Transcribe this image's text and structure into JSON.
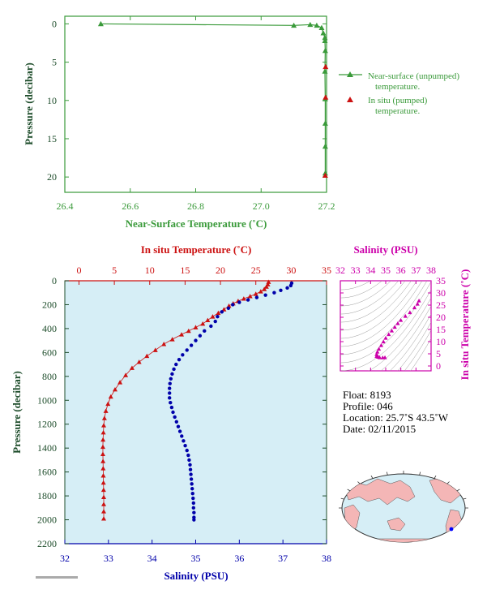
{
  "chart_data": [
    {
      "type": "line",
      "xlabel": "Near-Surface Temperature (˚C)",
      "ylabel": "Pressure (decibar)",
      "xlim": [
        26.4,
        27.2
      ],
      "ylim": [
        22,
        -1
      ],
      "xticks": [
        "26.4",
        "26.6",
        "26.8",
        "27.0",
        "27.2"
      ],
      "yticks": [
        "0",
        "5",
        "10",
        "15",
        "20"
      ],
      "legend_position": "right",
      "series": [
        {
          "name": "Near-surface (unpumped) temperature.",
          "color": "#3a9a3a",
          "marker": "triangle-line",
          "points": [
            [
              26.51,
              0.0
            ],
            [
              27.1,
              0.2
            ],
            [
              27.15,
              0.1
            ],
            [
              27.17,
              0.2
            ],
            [
              27.185,
              0.5
            ],
            [
              27.19,
              1.2
            ],
            [
              27.195,
              1.8
            ],
            [
              27.195,
              2.2
            ],
            [
              27.196,
              3.5
            ],
            [
              27.195,
              6.2
            ],
            [
              27.196,
              9.8
            ],
            [
              27.196,
              13.0
            ],
            [
              27.196,
              16.0
            ],
            [
              27.196,
              19.5
            ]
          ]
        },
        {
          "name": "In situ (pumped) temperature.",
          "color": "#cc1111",
          "marker": "triangle",
          "points": [
            [
              27.197,
              5.6
            ],
            [
              27.197,
              9.6
            ],
            [
              27.196,
              19.8
            ]
          ]
        }
      ]
    },
    {
      "type": "line",
      "x_top_label": "In situ Temperature (˚C)",
      "x_bottom_label": "Salinity (PSU)",
      "ylabel": "Pressure (decibar)",
      "top_xlim": [
        -2,
        35
      ],
      "top_xticks": [
        "0",
        "5",
        "10",
        "15",
        "20",
        "25",
        "30",
        "35"
      ],
      "bottom_xlim": [
        32,
        38
      ],
      "bottom_xticks": [
        "32",
        "33",
        "34",
        "35",
        "36",
        "37",
        "38"
      ],
      "ylim": [
        2200,
        0
      ],
      "yticks": [
        "0",
        "200",
        "400",
        "600",
        "800",
        "1000",
        "1200",
        "1400",
        "1600",
        "1800",
        "2000",
        "2200"
      ],
      "background": "#d6eef6",
      "series": [
        {
          "name": "In situ Temperature",
          "color": "#cc1111",
          "marker": "triangle",
          "points": [
            [
              26.8,
              10
            ],
            [
              26.7,
              30
            ],
            [
              26.5,
              50
            ],
            [
              26.2,
              70
            ],
            [
              25.7,
              90
            ],
            [
              25.0,
              110
            ],
            [
              24.2,
              130
            ],
            [
              23.3,
              150
            ],
            [
              22.5,
              170
            ],
            [
              21.8,
              190
            ],
            [
              21.2,
              210
            ],
            [
              20.5,
              240
            ],
            [
              19.7,
              270
            ],
            [
              18.9,
              300
            ],
            [
              18.2,
              330
            ],
            [
              17.5,
              360
            ],
            [
              16.5,
              390
            ],
            [
              15.5,
              420
            ],
            [
              14.5,
              450
            ],
            [
              13.2,
              490
            ],
            [
              12.0,
              530
            ],
            [
              10.8,
              580
            ],
            [
              9.6,
              630
            ],
            [
              8.5,
              680
            ],
            [
              7.5,
              730
            ],
            [
              6.6,
              790
            ],
            [
              5.8,
              850
            ],
            [
              5.1,
              910
            ],
            [
              4.5,
              970
            ],
            [
              4.1,
              1030
            ],
            [
              3.8,
              1090
            ],
            [
              3.6,
              1150
            ],
            [
              3.5,
              1210
            ],
            [
              3.45,
              1270
            ],
            [
              3.4,
              1330
            ],
            [
              3.38,
              1390
            ],
            [
              3.38,
              1450
            ],
            [
              3.4,
              1510
            ],
            [
              3.42,
              1570
            ],
            [
              3.44,
              1630
            ],
            [
              3.46,
              1690
            ],
            [
              3.48,
              1750
            ],
            [
              3.5,
              1810
            ],
            [
              3.5,
              1870
            ],
            [
              3.5,
              1930
            ],
            [
              3.5,
              1990
            ]
          ]
        },
        {
          "name": "Salinity",
          "color": "#0000aa",
          "marker": "dot",
          "points": [
            [
              37.2,
              20
            ],
            [
              37.18,
              40
            ],
            [
              37.1,
              60
            ],
            [
              36.95,
              80
            ],
            [
              36.8,
              100
            ],
            [
              36.6,
              120
            ],
            [
              36.4,
              140
            ],
            [
              36.2,
              160
            ],
            [
              36.0,
              180
            ],
            [
              35.85,
              200
            ],
            [
              35.75,
              230
            ],
            [
              35.6,
              260
            ],
            [
              35.5,
              300
            ],
            [
              35.45,
              340
            ],
            [
              35.35,
              380
            ],
            [
              35.2,
              420
            ],
            [
              35.1,
              460
            ],
            [
              35.0,
              500
            ],
            [
              34.9,
              540
            ],
            [
              34.8,
              580
            ],
            [
              34.7,
              620
            ],
            [
              34.62,
              660
            ],
            [
              34.55,
              700
            ],
            [
              34.5,
              740
            ],
            [
              34.46,
              780
            ],
            [
              34.43,
              820
            ],
            [
              34.41,
              860
            ],
            [
              34.4,
              900
            ],
            [
              34.4,
              940
            ],
            [
              34.4,
              980
            ],
            [
              34.42,
              1020
            ],
            [
              34.45,
              1060
            ],
            [
              34.48,
              1100
            ],
            [
              34.52,
              1140
            ],
            [
              34.56,
              1180
            ],
            [
              34.6,
              1220
            ],
            [
              34.64,
              1260
            ],
            [
              34.68,
              1300
            ],
            [
              34.72,
              1340
            ],
            [
              34.76,
              1380
            ],
            [
              34.8,
              1420
            ],
            [
              34.83,
              1460
            ],
            [
              34.85,
              1500
            ],
            [
              34.87,
              1540
            ],
            [
              34.88,
              1580
            ],
            [
              34.89,
              1620
            ],
            [
              34.9,
              1660
            ],
            [
              34.91,
              1700
            ],
            [
              34.92,
              1740
            ],
            [
              34.93,
              1780
            ],
            [
              34.94,
              1820
            ],
            [
              34.95,
              1860
            ],
            [
              34.95,
              1900
            ],
            [
              34.96,
              1940
            ],
            [
              34.96,
              1980
            ],
            [
              34.96,
              2000
            ]
          ]
        }
      ]
    },
    {
      "type": "scatter",
      "xlabel": "Salinity (PSU)",
      "ylabel": "In situ Temperature (˚C)",
      "xlim": [
        32,
        38
      ],
      "ylim": [
        -2,
        35
      ],
      "xticks": [
        "32",
        "33",
        "34",
        "35",
        "36",
        "37",
        "38"
      ],
      "yticks": [
        "0",
        "5",
        "10",
        "15",
        "20",
        "25",
        "30",
        "35"
      ],
      "color": "#cc00aa",
      "points": [
        [
          37.2,
          26.8
        ],
        [
          37.1,
          25.5
        ],
        [
          36.9,
          24.0
        ],
        [
          36.6,
          22.0
        ],
        [
          36.3,
          20.5
        ],
        [
          36.0,
          18.8
        ],
        [
          35.8,
          17.5
        ],
        [
          35.6,
          16.0
        ],
        [
          35.4,
          14.5
        ],
        [
          35.2,
          13.0
        ],
        [
          35.0,
          11.5
        ],
        [
          34.85,
          10.0
        ],
        [
          34.7,
          8.5
        ],
        [
          34.55,
          7.0
        ],
        [
          34.45,
          5.8
        ],
        [
          34.4,
          4.8
        ],
        [
          34.4,
          4.0
        ],
        [
          34.5,
          3.7
        ],
        [
          34.6,
          3.5
        ],
        [
          34.8,
          3.45
        ],
        [
          34.95,
          3.5
        ]
      ]
    }
  ],
  "info": {
    "float": "Float:  8193",
    "profile": "Profile:  046",
    "location": "Location:  25.7˚S  43.5˚W",
    "date": "Date:  02/11/2015"
  },
  "colors": {
    "green": "#3a9a3a",
    "red": "#cc1111",
    "blue": "#0000aa",
    "magenta": "#cc00aa",
    "panel_bg": "#d6eef6",
    "map_ocean": "#d6eef6",
    "map_land": "#f4b6b6"
  },
  "map": {
    "marker": "float-location"
  }
}
